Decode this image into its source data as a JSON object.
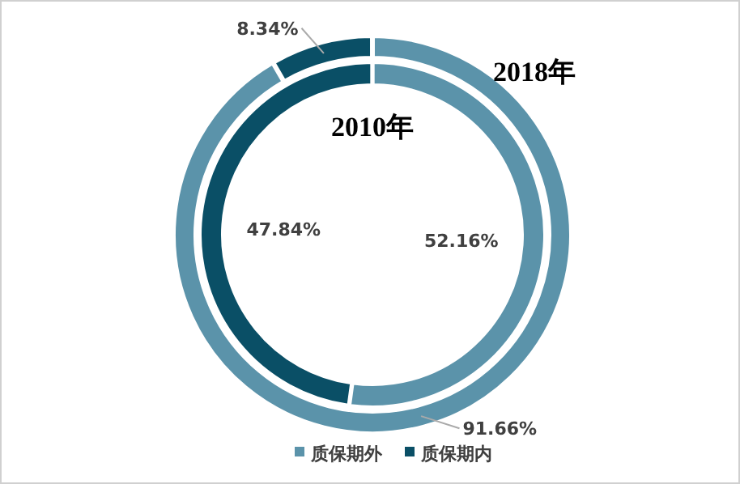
{
  "chart_data": {
    "type": "donut",
    "categories": [
      "质保期外",
      "质保期内"
    ],
    "colors": [
      "#5b93aa",
      "#0a4f66"
    ],
    "legend": "bottom",
    "series": [
      {
        "name": "2018年",
        "values": [
          91.66,
          8.34
        ],
        "value_labels": [
          "91.66%",
          "8.34%"
        ]
      },
      {
        "name": "2010年",
        "values": [
          52.16,
          47.84
        ],
        "value_labels": [
          "52.16%",
          "47.84%"
        ]
      }
    ]
  }
}
